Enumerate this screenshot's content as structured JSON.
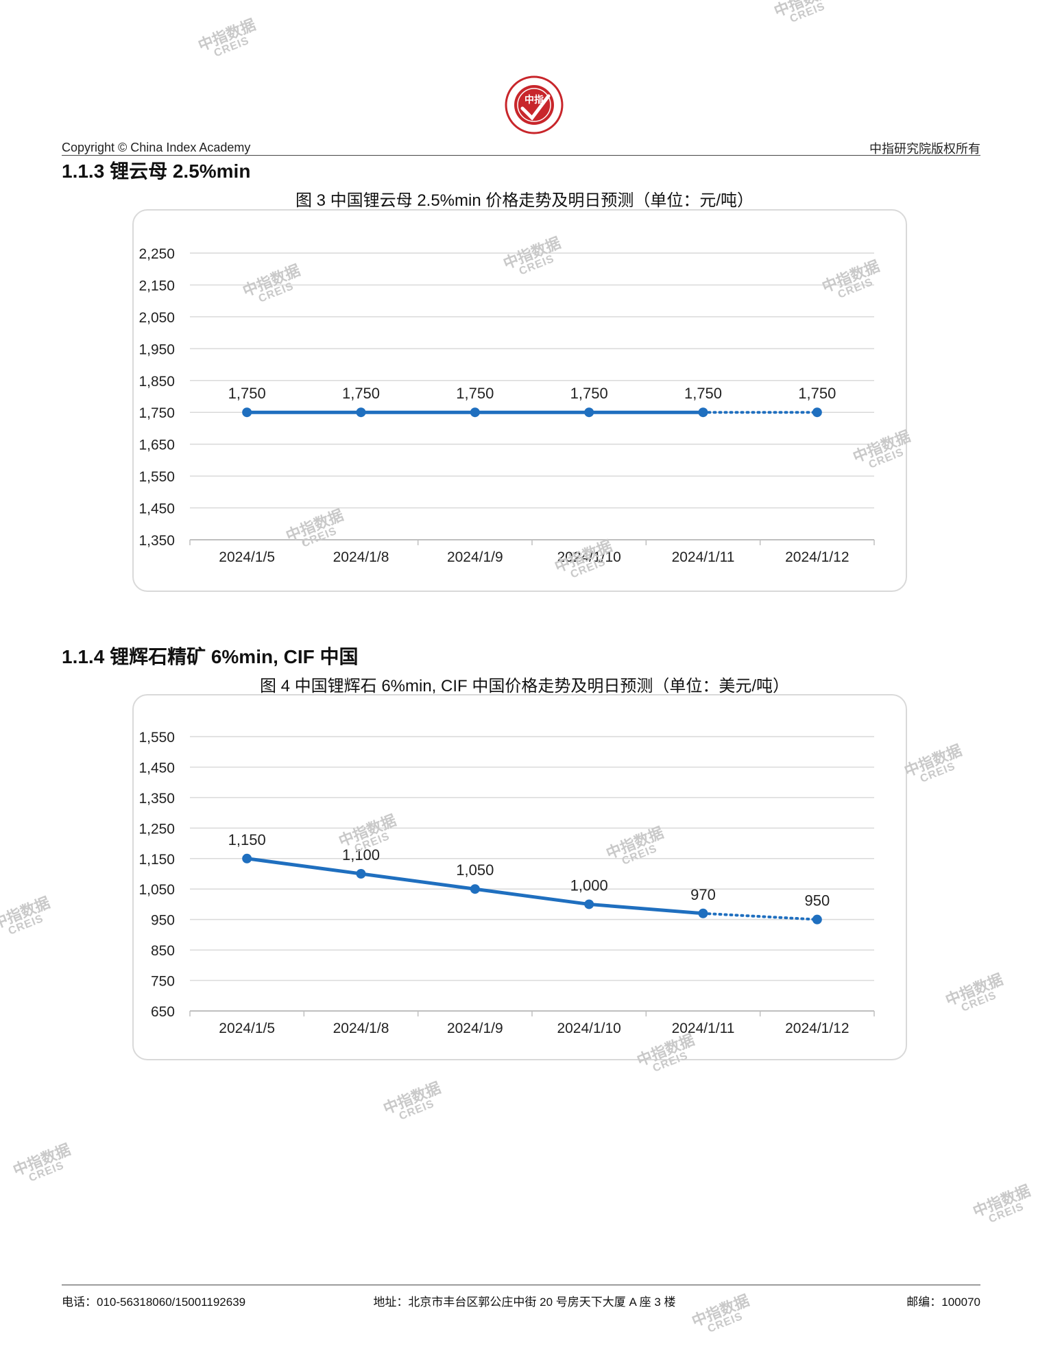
{
  "header": {
    "left": "Copyright © China Index Academy",
    "right": "中指研究院版权所有",
    "logo_text": "CHINA INDEX ACADEMY",
    "logo_center": "中指",
    "logo_bottom": "研究院"
  },
  "section1": {
    "heading_num": "1.1.3",
    "heading_text": "锂云母 2.5%min",
    "caption": "图 3 中国锂云母 2.5%min 价格走势及明日预测（单位：元/吨）"
  },
  "section2": {
    "heading_num": "1.1.4",
    "heading_text": "锂辉石精矿 6%min, CIF 中国",
    "caption": "图 4 中国锂辉石 6%min, CIF 中国价格走势及明日预测（单位：美元/吨）"
  },
  "footer": {
    "phone": "电话：010-56318060/15001192639",
    "address": "地址：北京市丰台区郭公庄中街 20 号房天下大厦 A 座 3 楼",
    "zip": "邮编：100070"
  },
  "watermark": {
    "cn": "中指数据",
    "en": "CREIS"
  },
  "colors": {
    "line": "#1f6fbf",
    "grid": "#d9d9d9",
    "axis": "#bfbfbf"
  },
  "chart_data": [
    {
      "type": "line",
      "title": "图 3 中国锂云母 2.5%min 价格走势及明日预测（单位：元/吨）",
      "categories": [
        "2024/1/5",
        "2024/1/8",
        "2024/1/9",
        "2024/1/10",
        "2024/1/11",
        "2024/1/12"
      ],
      "values": [
        1750,
        1750,
        1750,
        1750,
        1750,
        1750
      ],
      "data_labels": [
        "1,750",
        "1,750",
        "1,750",
        "1,750",
        "1,750",
        "1,750"
      ],
      "forecast_from_index": 4,
      "ylim": [
        1350,
        2250
      ],
      "yticks": [
        1350,
        1450,
        1550,
        1650,
        1750,
        1850,
        1950,
        2050,
        2150,
        2250
      ],
      "ytick_labels": [
        "1,350",
        "1,450",
        "1,550",
        "1,650",
        "1,750",
        "1,850",
        "1,950",
        "2,050",
        "2,150",
        "2,250"
      ],
      "grid": true,
      "legend": "none"
    },
    {
      "type": "line",
      "title": "图 4 中国锂辉石 6%min, CIF 中国价格走势及明日预测（单位：美元/吨）",
      "categories": [
        "2024/1/5",
        "2024/1/8",
        "2024/1/9",
        "2024/1/10",
        "2024/1/11",
        "2024/1/12"
      ],
      "values": [
        1150,
        1100,
        1050,
        1000,
        970,
        950
      ],
      "data_labels": [
        "1,150",
        "1,100",
        "1,050",
        "1,000",
        "970",
        "950"
      ],
      "forecast_from_index": 4,
      "ylim": [
        650,
        1550
      ],
      "yticks": [
        650,
        750,
        850,
        950,
        1050,
        1150,
        1250,
        1350,
        1450,
        1550
      ],
      "ytick_labels": [
        "650",
        "750",
        "850",
        "950",
        "1,050",
        "1,150",
        "1,250",
        "1,350",
        "1,450",
        "1,550"
      ],
      "grid": true,
      "legend": "none"
    }
  ]
}
